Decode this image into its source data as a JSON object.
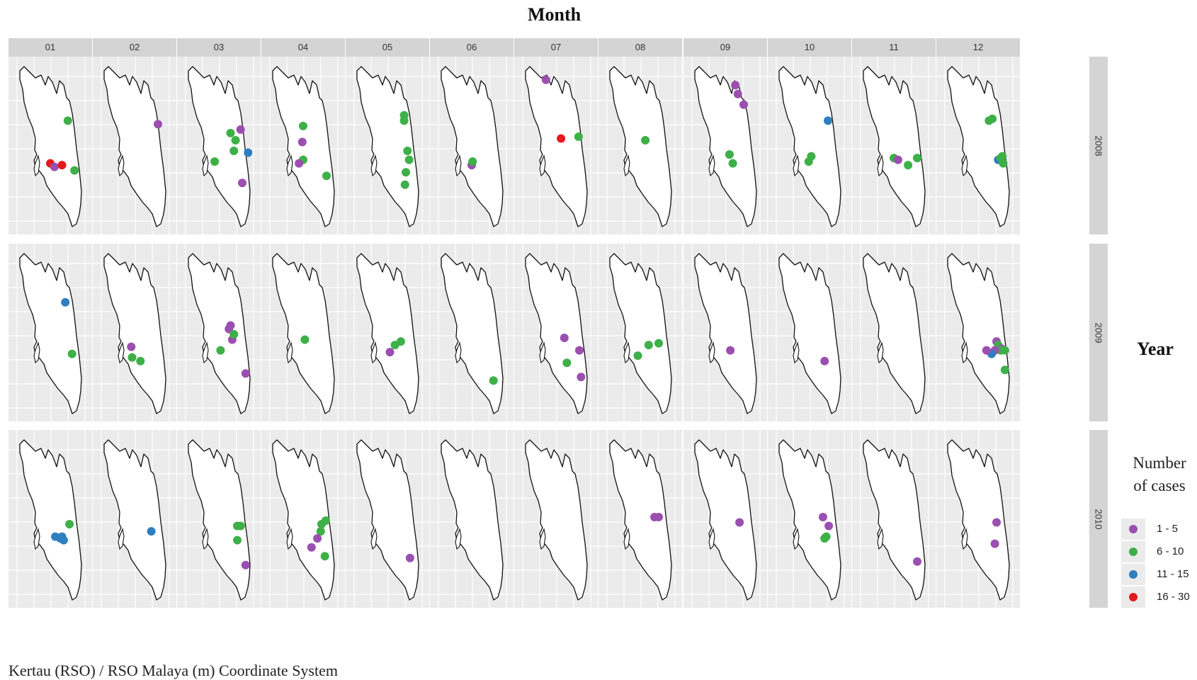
{
  "title": "Month",
  "months": [
    "01",
    "02",
    "03",
    "04",
    "05",
    "06",
    "07",
    "08",
    "09",
    "10",
    "11",
    "12"
  ],
  "years": [
    "2008",
    "2009",
    "2010"
  ],
  "row_label": "Year",
  "legend": {
    "title_line1": "Number",
    "title_line2": "of cases",
    "items": [
      {
        "label": "1 - 5",
        "color": "#9b4fb0"
      },
      {
        "label": "6 - 10",
        "color": "#3db048"
      },
      {
        "label": "11 - 15",
        "color": "#2e7fc0"
      },
      {
        "label": "16 - 30",
        "color": "#e31a1c"
      }
    ]
  },
  "caption": "Kertau (RSO) / RSO Malaya (m) Coordinate System",
  "cases": {
    "2008": {
      "01": [
        [
          0.71,
          0.36,
          "6 - 10"
        ],
        [
          0.5,
          0.6,
          "16 - 30"
        ],
        [
          0.55,
          0.62,
          "1 - 5"
        ],
        [
          0.64,
          0.61,
          "16 - 30"
        ],
        [
          0.79,
          0.64,
          "6 - 10"
        ]
      ],
      "02": [
        [
          0.78,
          0.38,
          "1 - 5"
        ]
      ],
      "03": [
        [
          0.68,
          0.53,
          "6 - 10"
        ],
        [
          0.76,
          0.41,
          "1 - 5"
        ],
        [
          0.64,
          0.43,
          "6 - 10"
        ],
        [
          0.7,
          0.47,
          "6 - 10"
        ],
        [
          0.85,
          0.54,
          "11 - 15"
        ],
        [
          0.45,
          0.59,
          "6 - 10"
        ],
        [
          0.78,
          0.71,
          "1 - 5"
        ]
      ],
      "04": [
        [
          0.5,
          0.39,
          "6 - 10"
        ],
        [
          0.49,
          0.48,
          "1 - 5"
        ],
        [
          0.5,
          0.58,
          "6 - 10"
        ],
        [
          0.78,
          0.67,
          "6 - 10"
        ],
        [
          0.45,
          0.6,
          "1 - 5"
        ]
      ],
      "05": [
        [
          0.7,
          0.33,
          "6 - 10"
        ],
        [
          0.7,
          0.36,
          "6 - 10"
        ],
        [
          0.74,
          0.53,
          "6 - 10"
        ],
        [
          0.76,
          0.58,
          "6 - 10"
        ],
        [
          0.72,
          0.65,
          "6 - 10"
        ],
        [
          0.71,
          0.72,
          "6 - 10"
        ]
      ],
      "06": [
        [
          0.5,
          0.61,
          "1 - 5"
        ],
        [
          0.51,
          0.59,
          "6 - 10"
        ]
      ],
      "07": [
        [
          0.38,
          0.13,
          "1 - 5"
        ],
        [
          0.56,
          0.46,
          "16 - 30"
        ],
        [
          0.77,
          0.45,
          "6 - 10"
        ]
      ],
      "08": [
        [
          0.56,
          0.47,
          "6 - 10"
        ]
      ],
      "09": [
        [
          0.62,
          0.16,
          "1 - 5"
        ],
        [
          0.65,
          0.21,
          "1 - 5"
        ],
        [
          0.72,
          0.27,
          "1 - 5"
        ],
        [
          0.55,
          0.55,
          "6 - 10"
        ],
        [
          0.59,
          0.6,
          "6 - 10"
        ]
      ],
      "10": [
        [
          0.72,
          0.36,
          "11 - 15"
        ],
        [
          0.52,
          0.56,
          "6 - 10"
        ],
        [
          0.49,
          0.59,
          "6 - 10"
        ]
      ],
      "11": [
        [
          0.5,
          0.57,
          "6 - 10"
        ],
        [
          0.55,
          0.58,
          "1 - 5"
        ],
        [
          0.67,
          0.61,
          "6 - 10"
        ],
        [
          0.78,
          0.57,
          "6 - 10"
        ]
      ],
      "12": [
        [
          0.63,
          0.36,
          "6 - 10"
        ],
        [
          0.67,
          0.35,
          "6 - 10"
        ],
        [
          0.74,
          0.58,
          "11 - 15"
        ],
        [
          0.77,
          0.57,
          "6 - 10"
        ],
        [
          0.79,
          0.56,
          "6 - 10"
        ],
        [
          0.8,
          0.6,
          "6 - 10"
        ]
      ]
    },
    "2009": {
      "01": [
        [
          0.68,
          0.33,
          "11 - 15"
        ],
        [
          0.76,
          0.62,
          "6 - 10"
        ]
      ],
      "02": [
        [
          0.46,
          0.58,
          "1 - 5"
        ],
        [
          0.47,
          0.64,
          "6 - 10"
        ],
        [
          0.57,
          0.66,
          "6 - 10"
        ]
      ],
      "03": [
        [
          0.62,
          0.48,
          "1 - 5"
        ],
        [
          0.64,
          0.46,
          "1 - 5"
        ],
        [
          0.66,
          0.54,
          "1 - 5"
        ],
        [
          0.68,
          0.51,
          "6 - 10"
        ],
        [
          0.52,
          0.6,
          "6 - 10"
        ],
        [
          0.82,
          0.73,
          "1 - 5"
        ]
      ],
      "04": [
        [
          0.52,
          0.54,
          "6 - 10"
        ]
      ],
      "05": [
        [
          0.59,
          0.57,
          "6 - 10"
        ],
        [
          0.66,
          0.55,
          "6 - 10"
        ],
        [
          0.53,
          0.61,
          "1 - 5"
        ]
      ],
      "06": [
        [
          0.76,
          0.77,
          "6 - 10"
        ]
      ],
      "07": [
        [
          0.6,
          0.53,
          "1 - 5"
        ],
        [
          0.78,
          0.6,
          "1 - 5"
        ],
        [
          0.63,
          0.67,
          "6 - 10"
        ],
        [
          0.8,
          0.75,
          "1 - 5"
        ]
      ],
      "08": [
        [
          0.6,
          0.57,
          "6 - 10"
        ],
        [
          0.72,
          0.56,
          "6 - 10"
        ],
        [
          0.47,
          0.63,
          "6 - 10"
        ]
      ],
      "09": [
        [
          0.56,
          0.6,
          "1 - 5"
        ]
      ],
      "10": [
        [
          0.68,
          0.66,
          "1 - 5"
        ]
      ],
      "11": [],
      "12": [
        [
          0.72,
          0.55,
          "1 - 5"
        ],
        [
          0.74,
          0.57,
          "6 - 10"
        ],
        [
          0.78,
          0.59,
          "1 - 5"
        ],
        [
          0.77,
          0.6,
          "6 - 10"
        ],
        [
          0.7,
          0.6,
          "1 - 5"
        ],
        [
          0.66,
          0.62,
          "11 - 15"
        ],
        [
          0.6,
          0.6,
          "1 - 5"
        ],
        [
          0.82,
          0.6,
          "6 - 10"
        ],
        [
          0.82,
          0.71,
          "6 - 10"
        ]
      ]
    },
    "2010": {
      "01": [
        [
          0.73,
          0.53,
          "6 - 10"
        ],
        [
          0.56,
          0.6,
          "11 - 15"
        ],
        [
          0.62,
          0.61,
          "11 - 15"
        ],
        [
          0.66,
          0.62,
          "11 - 15"
        ],
        [
          0.64,
          0.6,
          "11 - 15"
        ]
      ],
      "02": [
        [
          0.7,
          0.57,
          "11 - 15"
        ]
      ],
      "03": [
        [
          0.72,
          0.54,
          "6 - 10"
        ],
        [
          0.76,
          0.54,
          "6 - 10"
        ],
        [
          0.72,
          0.62,
          "6 - 10"
        ],
        [
          0.82,
          0.76,
          "1 - 5"
        ]
      ],
      "04": [
        [
          0.72,
          0.53,
          "6 - 10"
        ],
        [
          0.77,
          0.51,
          "6 - 10"
        ],
        [
          0.71,
          0.57,
          "6 - 10"
        ],
        [
          0.67,
          0.61,
          "1 - 5"
        ],
        [
          0.6,
          0.66,
          "1 - 5"
        ],
        [
          0.76,
          0.71,
          "6 - 10"
        ]
      ],
      "05": [
        [
          0.77,
          0.72,
          "1 - 5"
        ]
      ],
      "06": [],
      "07": [],
      "08": [
        [
          0.67,
          0.49,
          "1 - 5"
        ],
        [
          0.72,
          0.49,
          "1 - 5"
        ]
      ],
      "09": [
        [
          0.67,
          0.52,
          "1 - 5"
        ]
      ],
      "10": [
        [
          0.66,
          0.49,
          "1 - 5"
        ],
        [
          0.73,
          0.54,
          "1 - 5"
        ],
        [
          0.68,
          0.61,
          "6 - 10"
        ],
        [
          0.7,
          0.6,
          "6 - 10"
        ]
      ],
      "11": [
        [
          0.78,
          0.74,
          "1 - 5"
        ]
      ],
      "12": [
        [
          0.72,
          0.52,
          "1 - 5"
        ],
        [
          0.7,
          0.64,
          "1 - 5"
        ]
      ]
    }
  }
}
